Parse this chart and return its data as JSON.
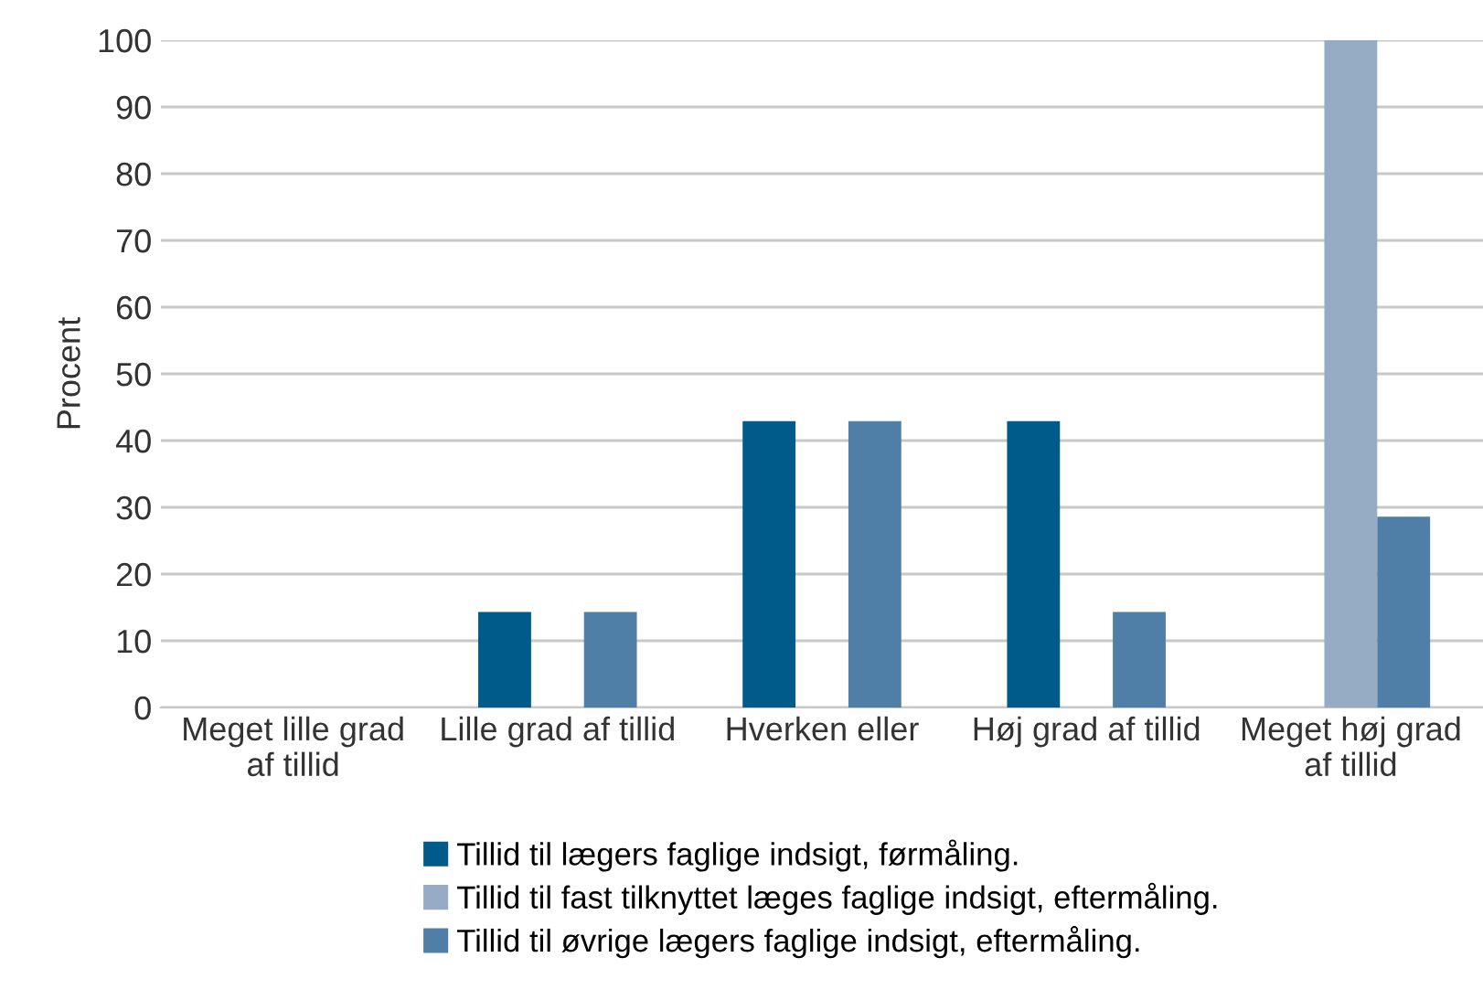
{
  "chart_data": {
    "type": "bar",
    "ylabel": "Procent",
    "categories": [
      "Meget lille grad\naf tillid",
      "Lille grad af tillid",
      "Hverken eller",
      "Høj grad af tillid",
      "Meget høj grad\naf tillid"
    ],
    "series": [
      {
        "name": "Tillid til lægers faglige indsigt, førmåling.",
        "color": "#005b8a",
        "values": [
          0,
          14.3,
          42.9,
          42.9,
          0
        ]
      },
      {
        "name": "Tillid til fast tilknyttet læges faglige indsigt, eftermåling.",
        "color": "#96abc4",
        "values": [
          0,
          0,
          0,
          0,
          100
        ]
      },
      {
        "name": "Tillid til øvrige lægers faglige indsigt, eftermåling.",
        "color": "#4f7fa6",
        "values": [
          0,
          14.3,
          42.9,
          14.3,
          28.6
        ]
      }
    ],
    "ylim": [
      0,
      100
    ],
    "yticks": [
      0,
      10,
      20,
      30,
      40,
      50,
      60,
      70,
      80,
      90,
      100
    ],
    "grid": "y",
    "legend": "bottom"
  }
}
